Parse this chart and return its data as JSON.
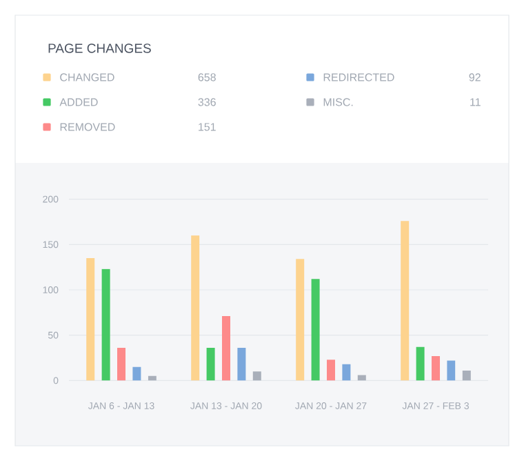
{
  "chart_data": {
    "type": "bar",
    "title": "PAGE CHANGES",
    "categories": [
      "JAN 6 - JAN 13",
      "JAN 13 - JAN 20",
      "JAN 20 - JAN 27",
      "JAN 27 - FEB 3"
    ],
    "series": [
      {
        "name": "CHANGED",
        "color": "#fdd38e",
        "values": [
          135,
          160,
          134,
          176
        ]
      },
      {
        "name": "ADDED",
        "color": "#45c964",
        "values": [
          123,
          36,
          112,
          37
        ]
      },
      {
        "name": "REMOVED",
        "color": "#fd8a8a",
        "values": [
          36,
          71,
          23,
          27
        ]
      },
      {
        "name": "REDIRECTED",
        "color": "#7aa7dc",
        "values": [
          15,
          36,
          18,
          22
        ]
      },
      {
        "name": "MISC.",
        "color": "#a9afba",
        "values": [
          5,
          10,
          6,
          11
        ]
      }
    ],
    "annotations": [
      "658",
      "336",
      "151",
      "92",
      "11"
    ],
    "ylim": [
      0,
      200
    ],
    "yticks": [
      0,
      50,
      100,
      150,
      200
    ],
    "grid": "y",
    "legend": "top"
  }
}
